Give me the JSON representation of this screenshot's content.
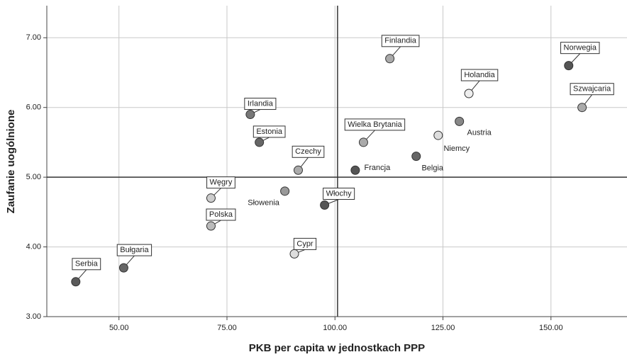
{
  "chart_data": {
    "type": "scatter",
    "xlabel": "PKB per capita w jednostkach PPP",
    "ylabel": "Zaufanie uogólnione",
    "xlim": [
      33.3,
      167.6
    ],
    "ylim": [
      3.0,
      7.46
    ],
    "xticks": [
      {
        "value": 50,
        "label": "50.00"
      },
      {
        "value": 75,
        "label": "75.00"
      },
      {
        "value": 100,
        "label": "100.00"
      },
      {
        "value": 125,
        "label": "125.00"
      },
      {
        "value": 150,
        "label": "150.00"
      }
    ],
    "yticks": [
      {
        "value": 3,
        "label": "3.00"
      },
      {
        "value": 4,
        "label": "4.00"
      },
      {
        "value": 5,
        "label": "5.00"
      },
      {
        "value": 6,
        "label": "6.00"
      },
      {
        "value": 7,
        "label": "7.00"
      }
    ],
    "grid": true,
    "reference_x": 100.6,
    "reference_y": 5.0,
    "labels": [
      "Serbia",
      "Bułgaria",
      "Węgry",
      "Polska",
      "Irlandia",
      "Estonia",
      "Czechy",
      "Słowenia",
      "Cypr",
      "Włochy",
      "Francja",
      "Wielka Brytania",
      "Finlandia",
      "Belgia",
      "Niemcy",
      "Austria",
      "Holandia",
      "Norwegia",
      "Szwajcaria"
    ],
    "x": [
      40.0,
      51.1,
      71.3,
      71.3,
      80.4,
      82.5,
      91.5,
      88.4,
      90.6,
      97.6,
      104.7,
      106.6,
      112.7,
      118.8,
      123.9,
      128.8,
      131.0,
      154.1,
      157.2
    ],
    "y": [
      3.5,
      3.7,
      4.7,
      4.3,
      5.9,
      5.5,
      5.1,
      4.8,
      3.9,
      4.6,
      5.1,
      5.5,
      6.7,
      5.3,
      5.6,
      5.8,
      6.2,
      6.6,
      6.0
    ],
    "colors": [
      "#5a5a5a",
      "#666666",
      "#cccccc",
      "#bbbbbb",
      "#777777",
      "#666666",
      "#aaaaaa",
      "#999999",
      "#dddddd",
      "#555555",
      "#555555",
      "#aaaaaa",
      "#aaaaaa",
      "#666666",
      "#dddddd",
      "#888888",
      "#eeeeee",
      "#555555",
      "#aaaaaa"
    ]
  }
}
